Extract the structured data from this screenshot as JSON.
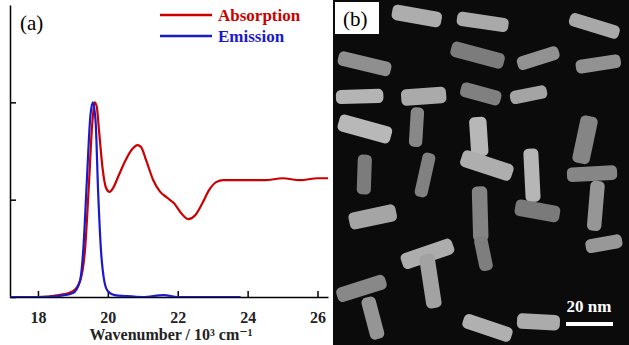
{
  "chart_data": {
    "type": "line",
    "annotations": [
      "(a)"
    ],
    "x_label": "Wavenumber / 10³ cm⁻¹",
    "xlim": [
      17.2,
      26.3
    ],
    "xticks": [
      18,
      20,
      22,
      24,
      26
    ],
    "ylim": [
      0,
      1.5
    ],
    "yticks": [
      0,
      0.5,
      1.0
    ],
    "tick_labels": "x",
    "legend": "upper right",
    "series": [
      {
        "name": "Absorption",
        "color": "#cc0000",
        "x": [
          17.2,
          18.0,
          18.6,
          19.0,
          19.2,
          19.35,
          19.45,
          19.55,
          19.62,
          19.68,
          19.75,
          19.85,
          19.95,
          20.05,
          20.15,
          20.3,
          20.5,
          20.7,
          20.85,
          20.95,
          21.1,
          21.3,
          21.5,
          21.7,
          21.9,
          22.1,
          22.3,
          22.5,
          22.7,
          22.9,
          23.1,
          23.3,
          23.6,
          24.0,
          24.5,
          25.0,
          25.5,
          26.0,
          26.3
        ],
        "values": [
          0.0,
          0.0,
          0.01,
          0.03,
          0.08,
          0.25,
          0.55,
          0.88,
          1.0,
          0.98,
          0.85,
          0.66,
          0.56,
          0.54,
          0.56,
          0.62,
          0.7,
          0.76,
          0.78,
          0.77,
          0.7,
          0.6,
          0.54,
          0.51,
          0.48,
          0.43,
          0.4,
          0.42,
          0.48,
          0.55,
          0.59,
          0.6,
          0.6,
          0.6,
          0.6,
          0.61,
          0.6,
          0.61,
          0.61
        ]
      },
      {
        "name": "Emission",
        "color": "#1a1acc",
        "x": [
          17.2,
          18.0,
          18.6,
          19.0,
          19.2,
          19.3,
          19.4,
          19.5,
          19.57,
          19.65,
          19.72,
          19.8,
          19.9,
          20.0,
          20.2,
          20.5,
          21.0,
          21.6,
          22.0,
          23.0,
          23.8
        ],
        "values": [
          0.0,
          0.0,
          0.005,
          0.02,
          0.08,
          0.25,
          0.6,
          0.93,
          1.0,
          0.9,
          0.55,
          0.25,
          0.08,
          0.03,
          0.01,
          0.005,
          0.0,
          0.01,
          0.0,
          0.0,
          0.0
        ]
      }
    ]
  },
  "image_panel": {
    "label": "(b)",
    "scale_bar": "20 nm"
  }
}
